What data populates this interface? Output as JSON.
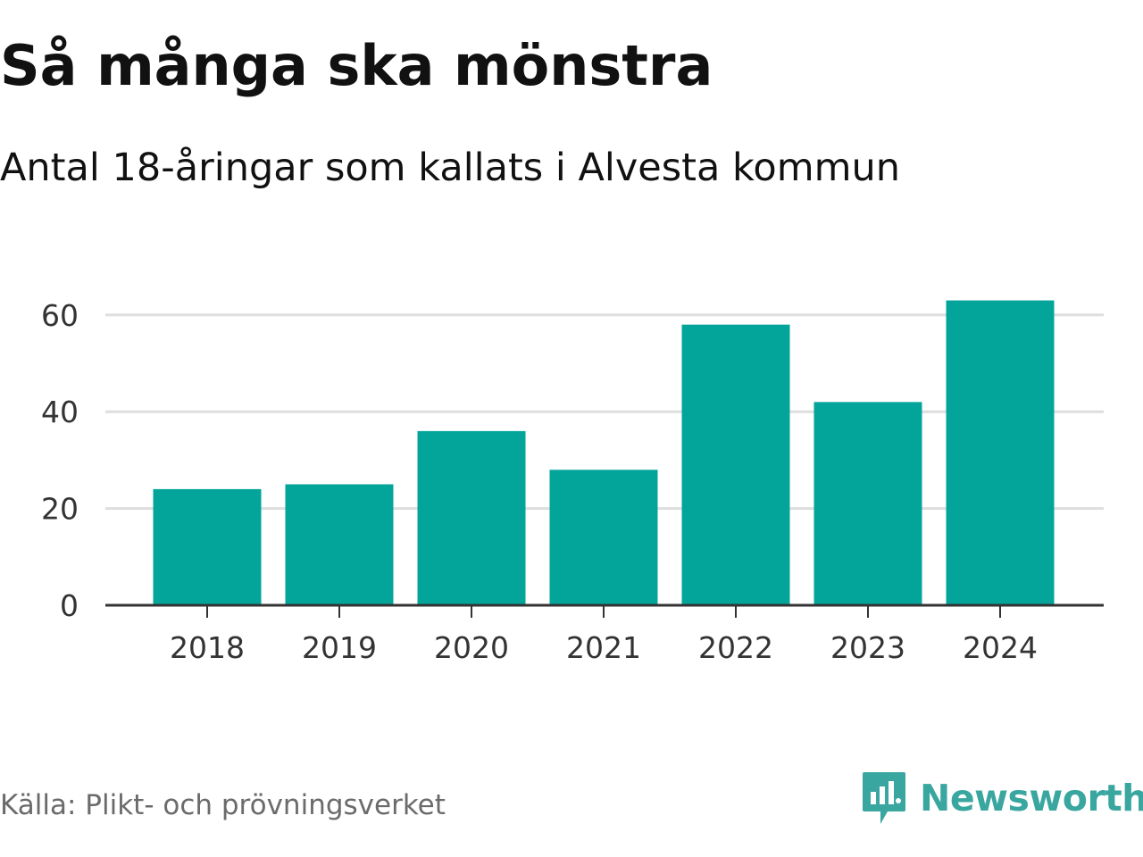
{
  "title": "Så många ska mönstra",
  "subtitle": "Antal 18-åringar som kallats i Alvesta kommun",
  "source": "Källa: Plikt- och prövningsverket",
  "brand": {
    "name": "Newsworthy",
    "icon": "newsworthy-chart-icon",
    "color": "#3aa6a0"
  },
  "chart_data": {
    "type": "bar",
    "categories": [
      "2018",
      "2019",
      "2020",
      "2021",
      "2022",
      "2023",
      "2024"
    ],
    "values": [
      24,
      25,
      36,
      28,
      58,
      42,
      63
    ],
    "xlabel": "",
    "ylabel": "",
    "ylim": [
      0,
      68
    ],
    "yticks": [
      0,
      20,
      40,
      60
    ],
    "grid": true,
    "bar_color": "#03a59b"
  }
}
